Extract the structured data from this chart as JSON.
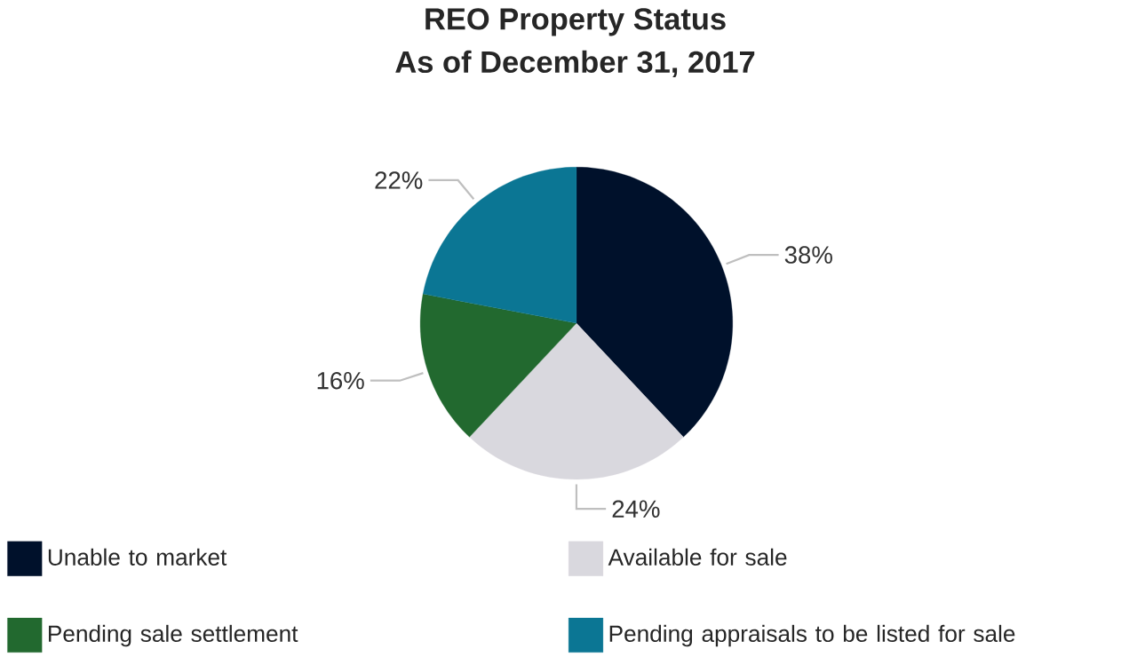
{
  "chart_data": {
    "type": "pie",
    "title": "REO Property Status",
    "subtitle": "As of December 31, 2017",
    "categories": [
      "Unable to market",
      "Available for sale",
      "Pending sale settlement",
      "Pending appraisals to be listed for sale"
    ],
    "values": [
      38,
      24,
      16,
      22
    ],
    "value_labels": [
      "38%",
      "24%",
      "16%",
      "22%"
    ],
    "colors": [
      "#00112b",
      "#d9d8de",
      "#22692f",
      "#0b7694"
    ],
    "legend": "bottom"
  }
}
